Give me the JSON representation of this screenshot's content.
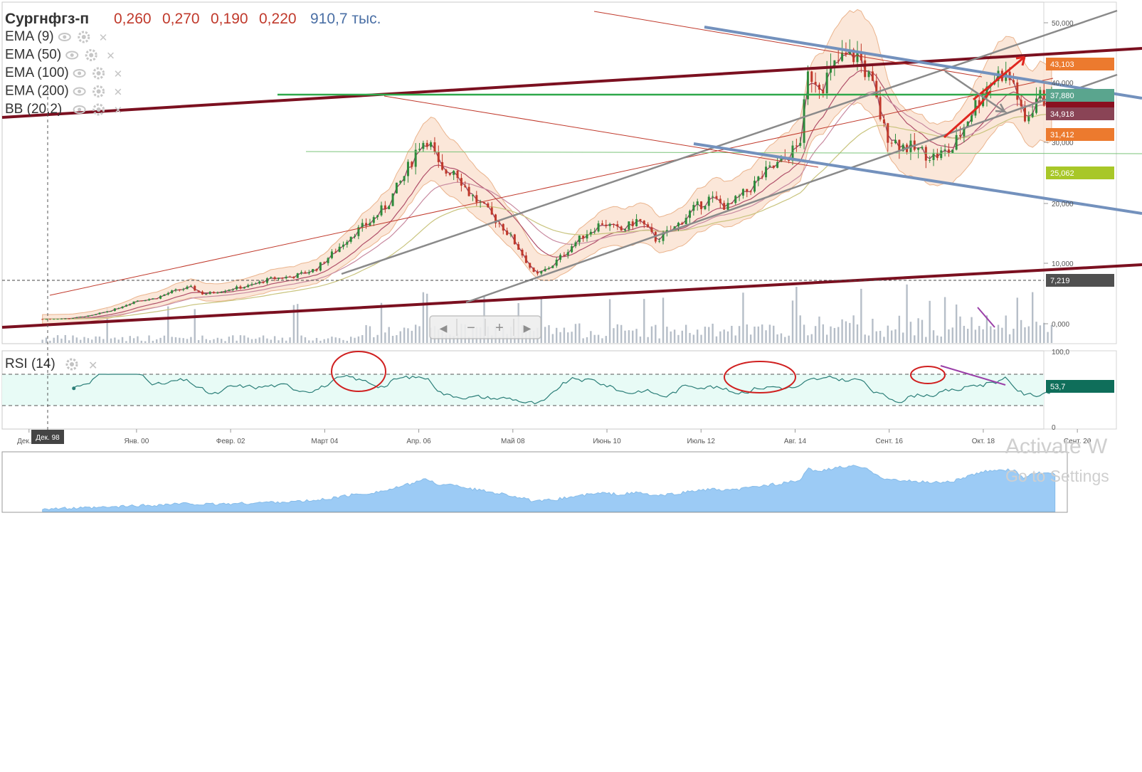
{
  "header": {
    "ticker": "Сургнфгз-п",
    "open": "0,260",
    "high": "0,270",
    "low": "0,190",
    "close": "0,220",
    "volume": "910,7 тыс."
  },
  "indicators": [
    {
      "label": "EMA (9)"
    },
    {
      "label": "EMA (50)"
    },
    {
      "label": "EMA (100)"
    },
    {
      "label": "EMA (200)"
    },
    {
      "label": "BB (20,2)"
    }
  ],
  "rsi": {
    "label": "RSI (14)",
    "value": "53,7",
    "axis_top": "100,0",
    "axis_bottom": "0"
  },
  "cursor_label": "Дек. 98",
  "scrollbar": {
    "left": "◀",
    "minus": "−",
    "plus": "+",
    "right": "▶"
  },
  "watermark": {
    "line1": "Activate W",
    "line2": "Go to Settings"
  },
  "colors": {
    "up": "#2e8b3c",
    "down": "#c0392b",
    "bb_fill": "#fbe3d3",
    "bb_line": "#e7a77a",
    "resistance": "#7b1020",
    "channel": "#8a8a8a",
    "downtrend": "#7391bd",
    "green_level": "#2ea84a",
    "rsi_line": "#2b7e78",
    "rsi_fill": "#e8fbf6",
    "area": "#9ccbf5"
  },
  "chart_data": {
    "type": "candlestick",
    "x_ticks": [
      "Дек. 97",
      "Янв. 00",
      "Февр. 02",
      "Март 04",
      "Апр. 06",
      "Май 08",
      "Июнь 10",
      "Июль 12",
      "Авг. 14",
      "Сент. 16",
      "Окт. 18",
      "Сент. 20"
    ],
    "y_ticks": [
      "50,000",
      "40,000",
      "30,000",
      "20,000",
      "10,000",
      "0,000"
    ],
    "price_labels": [
      {
        "text": "43,103",
        "color": "#ec7a2e"
      },
      {
        "text": "37,880",
        "color": "#5aa58e"
      },
      {
        "text": "34,918",
        "color": "#8a4456"
      },
      {
        "text": "31,412",
        "color": "#ec7a2e"
      },
      {
        "text": "25,062",
        "color": "#a8c728"
      },
      {
        "text": "7,219",
        "color": "#505050"
      }
    ],
    "rsi_value": 53.7,
    "close_series": [
      {
        "date": "1997.9",
        "close": 0.9
      },
      {
        "date": "1998.5",
        "close": 1.0
      },
      {
        "date": "1999.0",
        "close": 1.5
      },
      {
        "date": "1999.5",
        "close": 2.5
      },
      {
        "date": "2000.0",
        "close": 4.0
      },
      {
        "date": "2000.4",
        "close": 4.3
      },
      {
        "date": "2000.8",
        "close": 5.5
      },
      {
        "date": "2001.2",
        "close": 6.2
      },
      {
        "date": "2001.5",
        "close": 5.0
      },
      {
        "date": "2002.0",
        "close": 5.8
      },
      {
        "date": "2002.5",
        "close": 6.4
      },
      {
        "date": "2003.0",
        "close": 7.6
      },
      {
        "date": "2003.5",
        "close": 8.0
      },
      {
        "date": "2004.0",
        "close": 9.2
      },
      {
        "date": "2004.4",
        "close": 12.0
      },
      {
        "date": "2004.8",
        "close": 15.0
      },
      {
        "date": "2005.2",
        "close": 17.0
      },
      {
        "date": "2005.6",
        "close": 20.0
      },
      {
        "date": "2006.0",
        "close": 25.0
      },
      {
        "date": "2006.3",
        "close": 30.0
      },
      {
        "date": "2006.5",
        "close": 31.0
      },
      {
        "date": "2006.8",
        "close": 25.0
      },
      {
        "date": "2007.1",
        "close": 26.0
      },
      {
        "date": "2007.4",
        "close": 22.0
      },
      {
        "date": "2007.8",
        "close": 19.0
      },
      {
        "date": "2008.2",
        "close": 16.0
      },
      {
        "date": "2008.5",
        "close": 13.0
      },
      {
        "date": "2008.9",
        "close": 8.0
      },
      {
        "date": "2009.3",
        "close": 10.0
      },
      {
        "date": "2009.7",
        "close": 13.0
      },
      {
        "date": "2010.0",
        "close": 15.0
      },
      {
        "date": "2010.4",
        "close": 17.0
      },
      {
        "date": "2010.8",
        "close": 15.5
      },
      {
        "date": "2011.2",
        "close": 17.5
      },
      {
        "date": "2011.6",
        "close": 14.0
      },
      {
        "date": "2012.0",
        "close": 16.0
      },
      {
        "date": "2012.4",
        "close": 19.0
      },
      {
        "date": "2012.8",
        "close": 21.0
      },
      {
        "date": "2013.2",
        "close": 19.5
      },
      {
        "date": "2013.6",
        "close": 22.0
      },
      {
        "date": "2014.0",
        "close": 25.0
      },
      {
        "date": "2014.4",
        "close": 27.0
      },
      {
        "date": "2014.8",
        "close": 30.0
      },
      {
        "date": "2015.0",
        "close": 42.0
      },
      {
        "date": "2015.3",
        "close": 40.0
      },
      {
        "date": "2015.7",
        "close": 44.0
      },
      {
        "date": "2016.1",
        "close": 45.0
      },
      {
        "date": "2016.4",
        "close": 40.0
      },
      {
        "date": "2016.7",
        "close": 32.0
      },
      {
        "date": "2017.0",
        "close": 30.0
      },
      {
        "date": "2017.4",
        "close": 29.0
      },
      {
        "date": "2017.8",
        "close": 28.0
      },
      {
        "date": "2018.2",
        "close": 29.0
      },
      {
        "date": "2018.6",
        "close": 35.0
      },
      {
        "date": "2019.0",
        "close": 40.0
      },
      {
        "date": "2019.3",
        "close": 42.0
      },
      {
        "date": "2019.6",
        "close": 40.0
      },
      {
        "date": "2019.8",
        "close": 33.0
      },
      {
        "date": "2020.1",
        "close": 38.0
      },
      {
        "date": "2020.5",
        "close": 36.5
      }
    ]
  }
}
